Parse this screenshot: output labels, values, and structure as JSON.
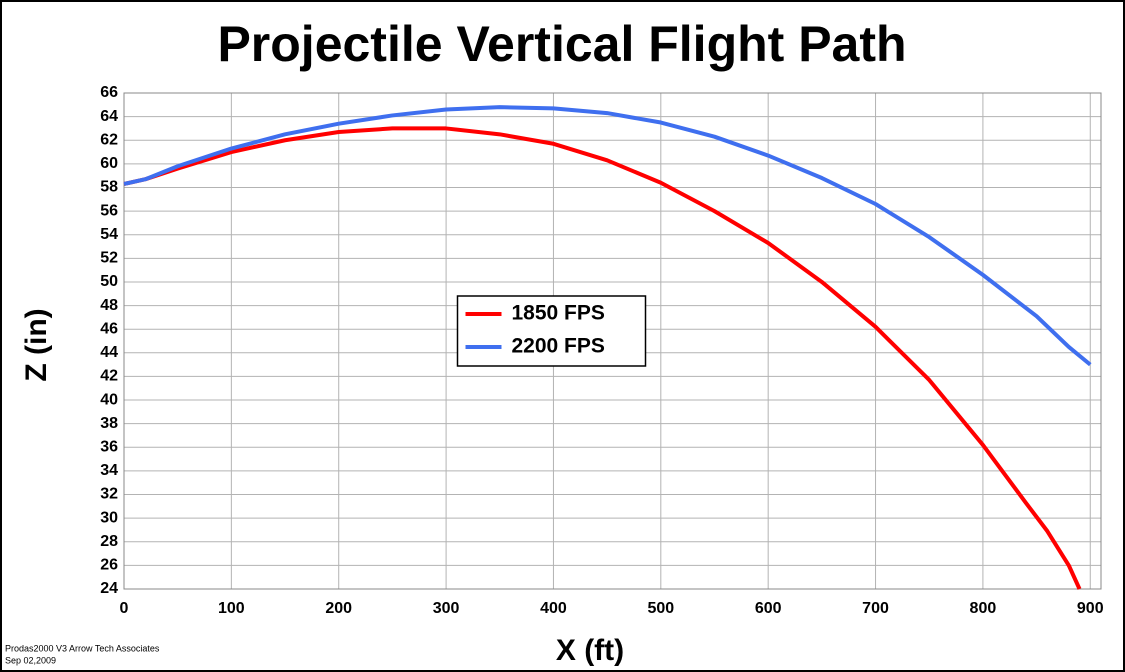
{
  "chart_data": {
    "type": "line",
    "title": "Projectile Vertical Flight Path",
    "xlabel": "X (ft)",
    "ylabel": "Z (in)",
    "footer": [
      "Prodas2000 V3 Arrow Tech Associates",
      "Sep 02,2009"
    ],
    "xlim": [
      0,
      910
    ],
    "xticks": [
      0,
      100,
      200,
      300,
      400,
      500,
      600,
      700,
      800,
      900
    ],
    "ylim": [
      24,
      66
    ],
    "yticks": [
      24,
      26,
      28,
      30,
      32,
      34,
      36,
      38,
      40,
      42,
      44,
      46,
      48,
      50,
      52,
      54,
      56,
      58,
      60,
      62,
      64,
      66
    ],
    "grid": true,
    "legend": "center",
    "series": [
      {
        "name": "1850 FPS",
        "color": "#ff0000",
        "x": [
          0,
          20,
          50,
          100,
          150,
          200,
          250,
          300,
          350,
          400,
          450,
          500,
          550,
          600,
          650,
          700,
          750,
          800,
          840,
          860,
          880,
          890
        ],
        "values": [
          58.3,
          58.7,
          59.6,
          61.0,
          62.0,
          62.7,
          63.0,
          63.0,
          62.5,
          61.7,
          60.3,
          58.4,
          56.0,
          53.3,
          50.0,
          46.2,
          41.7,
          36.2,
          31.3,
          28.9,
          26.0,
          24.0
        ]
      },
      {
        "name": "2200 FPS",
        "color": "#3f6fef",
        "x": [
          0,
          20,
          50,
          100,
          150,
          200,
          250,
          300,
          350,
          400,
          450,
          500,
          550,
          600,
          650,
          700,
          750,
          800,
          850,
          880,
          900
        ],
        "values": [
          58.3,
          58.7,
          59.8,
          61.3,
          62.5,
          63.4,
          64.1,
          64.6,
          64.8,
          64.7,
          64.3,
          63.5,
          62.3,
          60.7,
          58.8,
          56.6,
          53.8,
          50.6,
          47.1,
          44.5,
          43.0
        ]
      }
    ]
  }
}
